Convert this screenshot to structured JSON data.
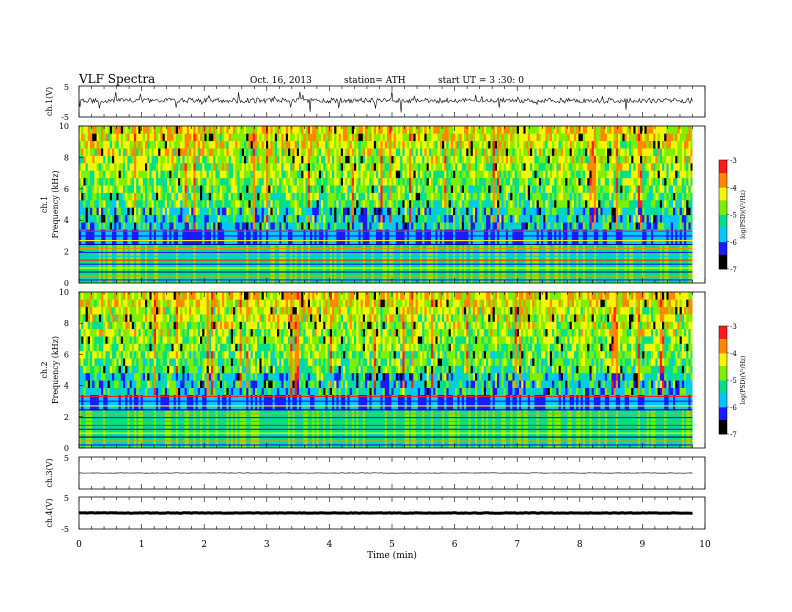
{
  "header": {
    "title": "VLF  Spectra",
    "date": "Oct. 16, 2013",
    "station": "station= ATH",
    "start": "start  UT =   3  :30: 0"
  },
  "chart_data": [
    {
      "type": "line",
      "name": "ch1-waveform",
      "ylabel": "ch.1(V)",
      "ytick_labels": [
        "-5",
        "5"
      ],
      "ylim": [
        -5,
        5
      ],
      "xlim": [
        0,
        10
      ],
      "approx_level": 0.3,
      "approx_spread": 1.6,
      "data_end": 9.8
    },
    {
      "type": "heatmap",
      "name": "ch1-spectrogram",
      "ylabel_line1": "ch.1",
      "ylabel_line2": "Frequency  (kHz)",
      "ytick_labels": [
        "0",
        "2",
        "4",
        "6",
        "8",
        "10"
      ],
      "ylim": [
        0,
        10
      ],
      "xlim": [
        0,
        9.8
      ],
      "colorbar": {
        "label": "log(PSD)(V²/Hz)",
        "ticks": [
          "-3",
          "-4",
          "-5",
          "-6",
          "-7"
        ],
        "range": [
          -7,
          -3
        ],
        "colors": [
          "#000000",
          "#1a1aff",
          "#00c8ff",
          "#00e08a",
          "#7cf000",
          "#f6f600",
          "#ff8800",
          "#ff1a1a",
          "#ffffff"
        ]
      }
    },
    {
      "type": "heatmap",
      "name": "ch2-spectrogram",
      "ylabel_line1": "ch.2",
      "ylabel_line2": "Frequency  (kHz)",
      "ytick_labels": [
        "0",
        "2",
        "4",
        "6",
        "8",
        "10"
      ],
      "ylim": [
        0,
        10
      ],
      "xlim": [
        0,
        9.8
      ],
      "colorbar": {
        "label": "log(PSD)(V²/Hz)",
        "ticks": [
          "-3",
          "-4",
          "-5",
          "-6",
          "-7"
        ],
        "range": [
          -7,
          -3
        ],
        "colors": [
          "#000000",
          "#1a1aff",
          "#00c8ff",
          "#00e08a",
          "#7cf000",
          "#f6f600",
          "#ff8800",
          "#ff1a1a",
          "#ffffff"
        ]
      }
    },
    {
      "type": "line",
      "name": "ch3-waveform",
      "ylabel": "ch.3(V)",
      "ytick_labels": [
        "5"
      ],
      "ylim": [
        -5,
        5
      ],
      "approx_level": 0.0,
      "data_end": 9.8
    },
    {
      "type": "line",
      "name": "ch4-waveform",
      "ylabel": "ch.4(V)",
      "ytick_labels": [
        "-5",
        "5"
      ],
      "ylim": [
        -5,
        5
      ],
      "approx_level": 0.0,
      "data_end": 9.8
    }
  ],
  "xaxis": {
    "label": "Time  (min)",
    "tick_labels": [
      "0",
      "1",
      "2",
      "3",
      "4",
      "5",
      "6",
      "7",
      "8",
      "9",
      "10"
    ],
    "range": [
      0,
      10
    ]
  }
}
